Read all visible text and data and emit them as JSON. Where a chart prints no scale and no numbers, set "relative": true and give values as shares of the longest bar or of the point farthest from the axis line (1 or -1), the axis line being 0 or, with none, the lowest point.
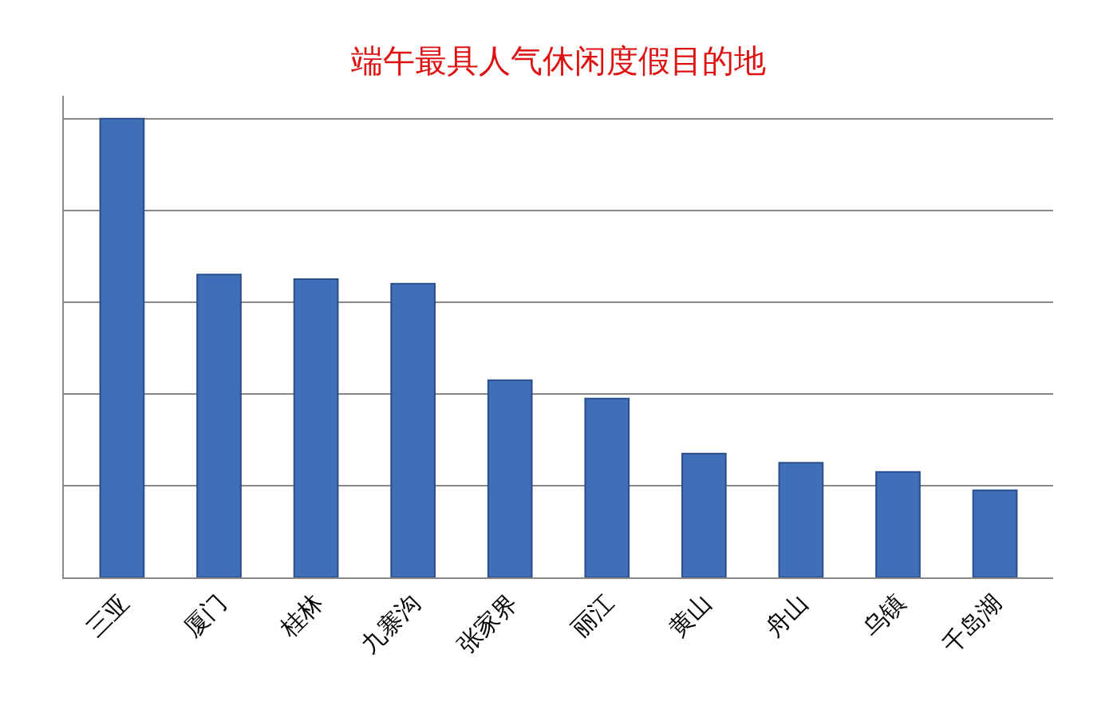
{
  "chart_data": {
    "type": "bar",
    "title": "端午最具人气休闲度假目的地",
    "relative": true,
    "grid": "y",
    "color": "#3f6fb8",
    "categories": [
      "三亚",
      "厦门",
      "桂林",
      "九寨沟",
      "张家界",
      "丽江",
      "黄山",
      "舟山",
      "乌镇",
      "千岛湖"
    ],
    "values": [
      1,
      0.66,
      0.65,
      0.64,
      0.43,
      0.39,
      0.27,
      0.25,
      0.23,
      0.19
    ]
  }
}
